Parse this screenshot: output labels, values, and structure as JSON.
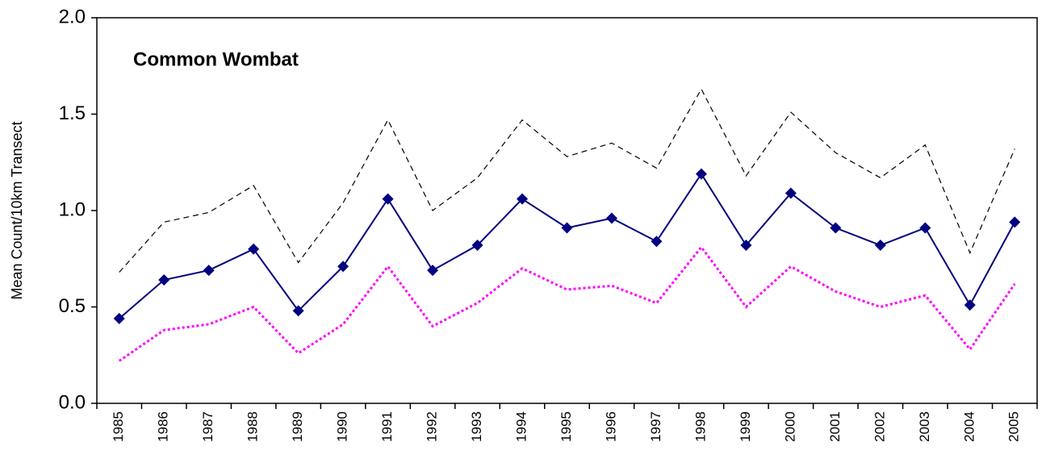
{
  "chart_data": {
    "type": "line",
    "title": "Common Wombat",
    "y_label": "Mean Count/10km Transect",
    "categories": [
      "1985",
      "1986",
      "1987",
      "1988",
      "1989",
      "1990",
      "1991",
      "1992",
      "1993",
      "1994",
      "1995",
      "1996",
      "1997",
      "1998",
      "1999",
      "2000",
      "2001",
      "2002",
      "2003",
      "2004",
      "2005"
    ],
    "series": [
      {
        "color": "#000000",
        "style": "dashed",
        "markers": false,
        "values": [
          0.68,
          0.94,
          0.99,
          1.13,
          0.73,
          1.04,
          1.47,
          1.0,
          1.17,
          1.47,
          1.28,
          1.35,
          1.22,
          1.63,
          1.18,
          1.51,
          1.3,
          1.17,
          1.34,
          0.78,
          1.32
        ]
      },
      {
        "color": "#ff00ff",
        "style": "dotted",
        "markers": false,
        "values": [
          0.22,
          0.38,
          0.41,
          0.5,
          0.26,
          0.41,
          0.71,
          0.4,
          0.52,
          0.7,
          0.59,
          0.61,
          0.52,
          0.81,
          0.5,
          0.71,
          0.58,
          0.5,
          0.56,
          0.28,
          0.62
        ]
      },
      {
        "color": "#000080",
        "style": "solid",
        "markers": true,
        "values": [
          0.44,
          0.64,
          0.69,
          0.8,
          0.48,
          0.71,
          1.06,
          0.69,
          0.82,
          1.06,
          0.91,
          0.96,
          0.84,
          1.19,
          0.82,
          1.09,
          0.91,
          0.82,
          0.91,
          0.51,
          0.94
        ]
      }
    ],
    "ylim": [
      0,
      2
    ],
    "yticks": [
      {
        "value": 0,
        "label": "0.0"
      },
      {
        "value": 0.5,
        "label": "0.5"
      },
      {
        "value": 1,
        "label": "1.0"
      },
      {
        "value": 1.5,
        "label": "1.5"
      },
      {
        "value": 2,
        "label": "2.0"
      }
    ],
    "grid": false
  }
}
